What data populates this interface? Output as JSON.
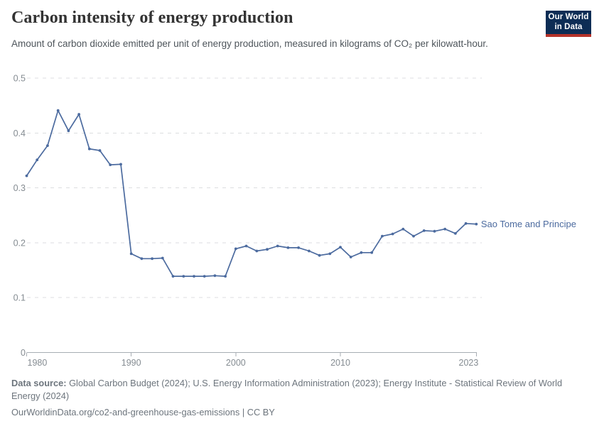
{
  "header": {
    "title": "Carbon intensity of energy production",
    "subtitle": "Amount of carbon dioxide emitted per unit of energy production, measured in kilograms of CO₂ per kilowatt-hour.",
    "logo_line1": "Our World",
    "logo_line2": "in Data"
  },
  "chart_data": {
    "type": "line",
    "title": "Carbon intensity of energy production",
    "xlabel": "",
    "ylabel": "",
    "xlim": [
      1980,
      2023
    ],
    "ylim": [
      0,
      0.5
    ],
    "x_ticks": [
      1980,
      1990,
      2000,
      2010,
      2023
    ],
    "y_ticks": [
      0,
      0.1,
      0.2,
      0.3,
      0.4,
      0.5
    ],
    "grid": "horizontal-dashed",
    "legend_position": "end-of-line-label",
    "series": [
      {
        "name": "Sao Tome and Principe",
        "x": [
          1980,
          1981,
          1982,
          1983,
          1984,
          1985,
          1986,
          1987,
          1988,
          1989,
          1990,
          1991,
          1992,
          1993,
          1994,
          1995,
          1996,
          1997,
          1998,
          1999,
          2000,
          2001,
          2002,
          2003,
          2004,
          2005,
          2006,
          2007,
          2008,
          2009,
          2010,
          2011,
          2012,
          2013,
          2014,
          2015,
          2016,
          2017,
          2018,
          2019,
          2020,
          2021,
          2022,
          2023
        ],
        "values": [
          0.322,
          0.351,
          0.377,
          0.441,
          0.404,
          0.434,
          0.371,
          0.368,
          0.342,
          0.343,
          0.18,
          0.171,
          0.171,
          0.172,
          0.139,
          0.139,
          0.139,
          0.139,
          0.14,
          0.139,
          0.189,
          0.194,
          0.185,
          0.188,
          0.194,
          0.191,
          0.191,
          0.185,
          0.177,
          0.18,
          0.192,
          0.174,
          0.182,
          0.182,
          0.212,
          0.216,
          0.225,
          0.212,
          0.222,
          0.221,
          0.225,
          0.217,
          0.235,
          0.234
        ]
      }
    ],
    "end_label": "Sao Tome and Principe"
  },
  "colors": {
    "line": "#4C6B9F",
    "grid": "#dcdee0",
    "axis": "#a7adb3",
    "tick_text": "#858c92",
    "logo_navy": "#0d2d55",
    "logo_red": "#b5332a"
  },
  "footer": {
    "source_label": "Data source:",
    "source_text": " Global Carbon Budget (2024); U.S. Energy Information Administration (2023); Energy Institute - Statistical Review of World Energy (2024)",
    "url_line": "OurWorldinData.org/co2-and-greenhouse-gas-emissions | CC BY"
  }
}
